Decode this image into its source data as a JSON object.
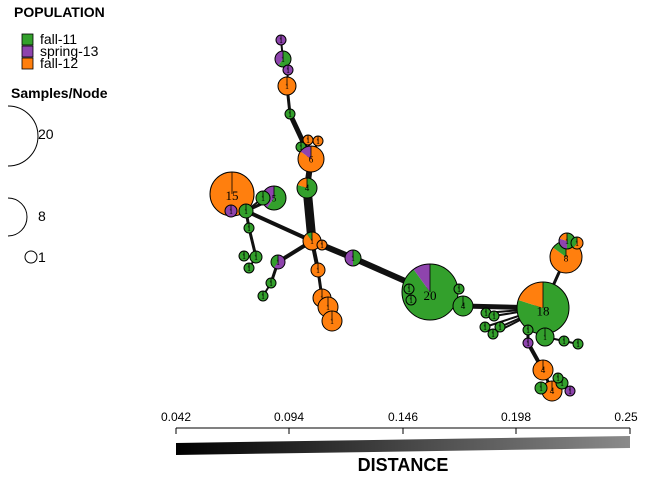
{
  "legend": {
    "population_title": "POPULATION",
    "populations": [
      {
        "name": "fall-11",
        "color": "#33a02c"
      },
      {
        "name": "spring-13",
        "color": "#8e44ad"
      },
      {
        "name": "fall-12",
        "color": "#ff7f0e"
      }
    ],
    "size_title": "Samples/Node",
    "size_scale": [
      {
        "label": "20"
      },
      {
        "label": "8"
      },
      {
        "label": "1"
      }
    ]
  },
  "distance_axis": {
    "title": "DISTANCE",
    "ticks": [
      "0.042",
      "0.094",
      "0.146",
      "0.198",
      "0.25"
    ]
  },
  "node_labels": [
    "15",
    "5",
    "6",
    "4",
    "8",
    "20",
    "4",
    "18",
    "8",
    "4",
    "4",
    "1"
  ],
  "colors": {
    "edge": "#111111",
    "outline": "#000000"
  }
}
